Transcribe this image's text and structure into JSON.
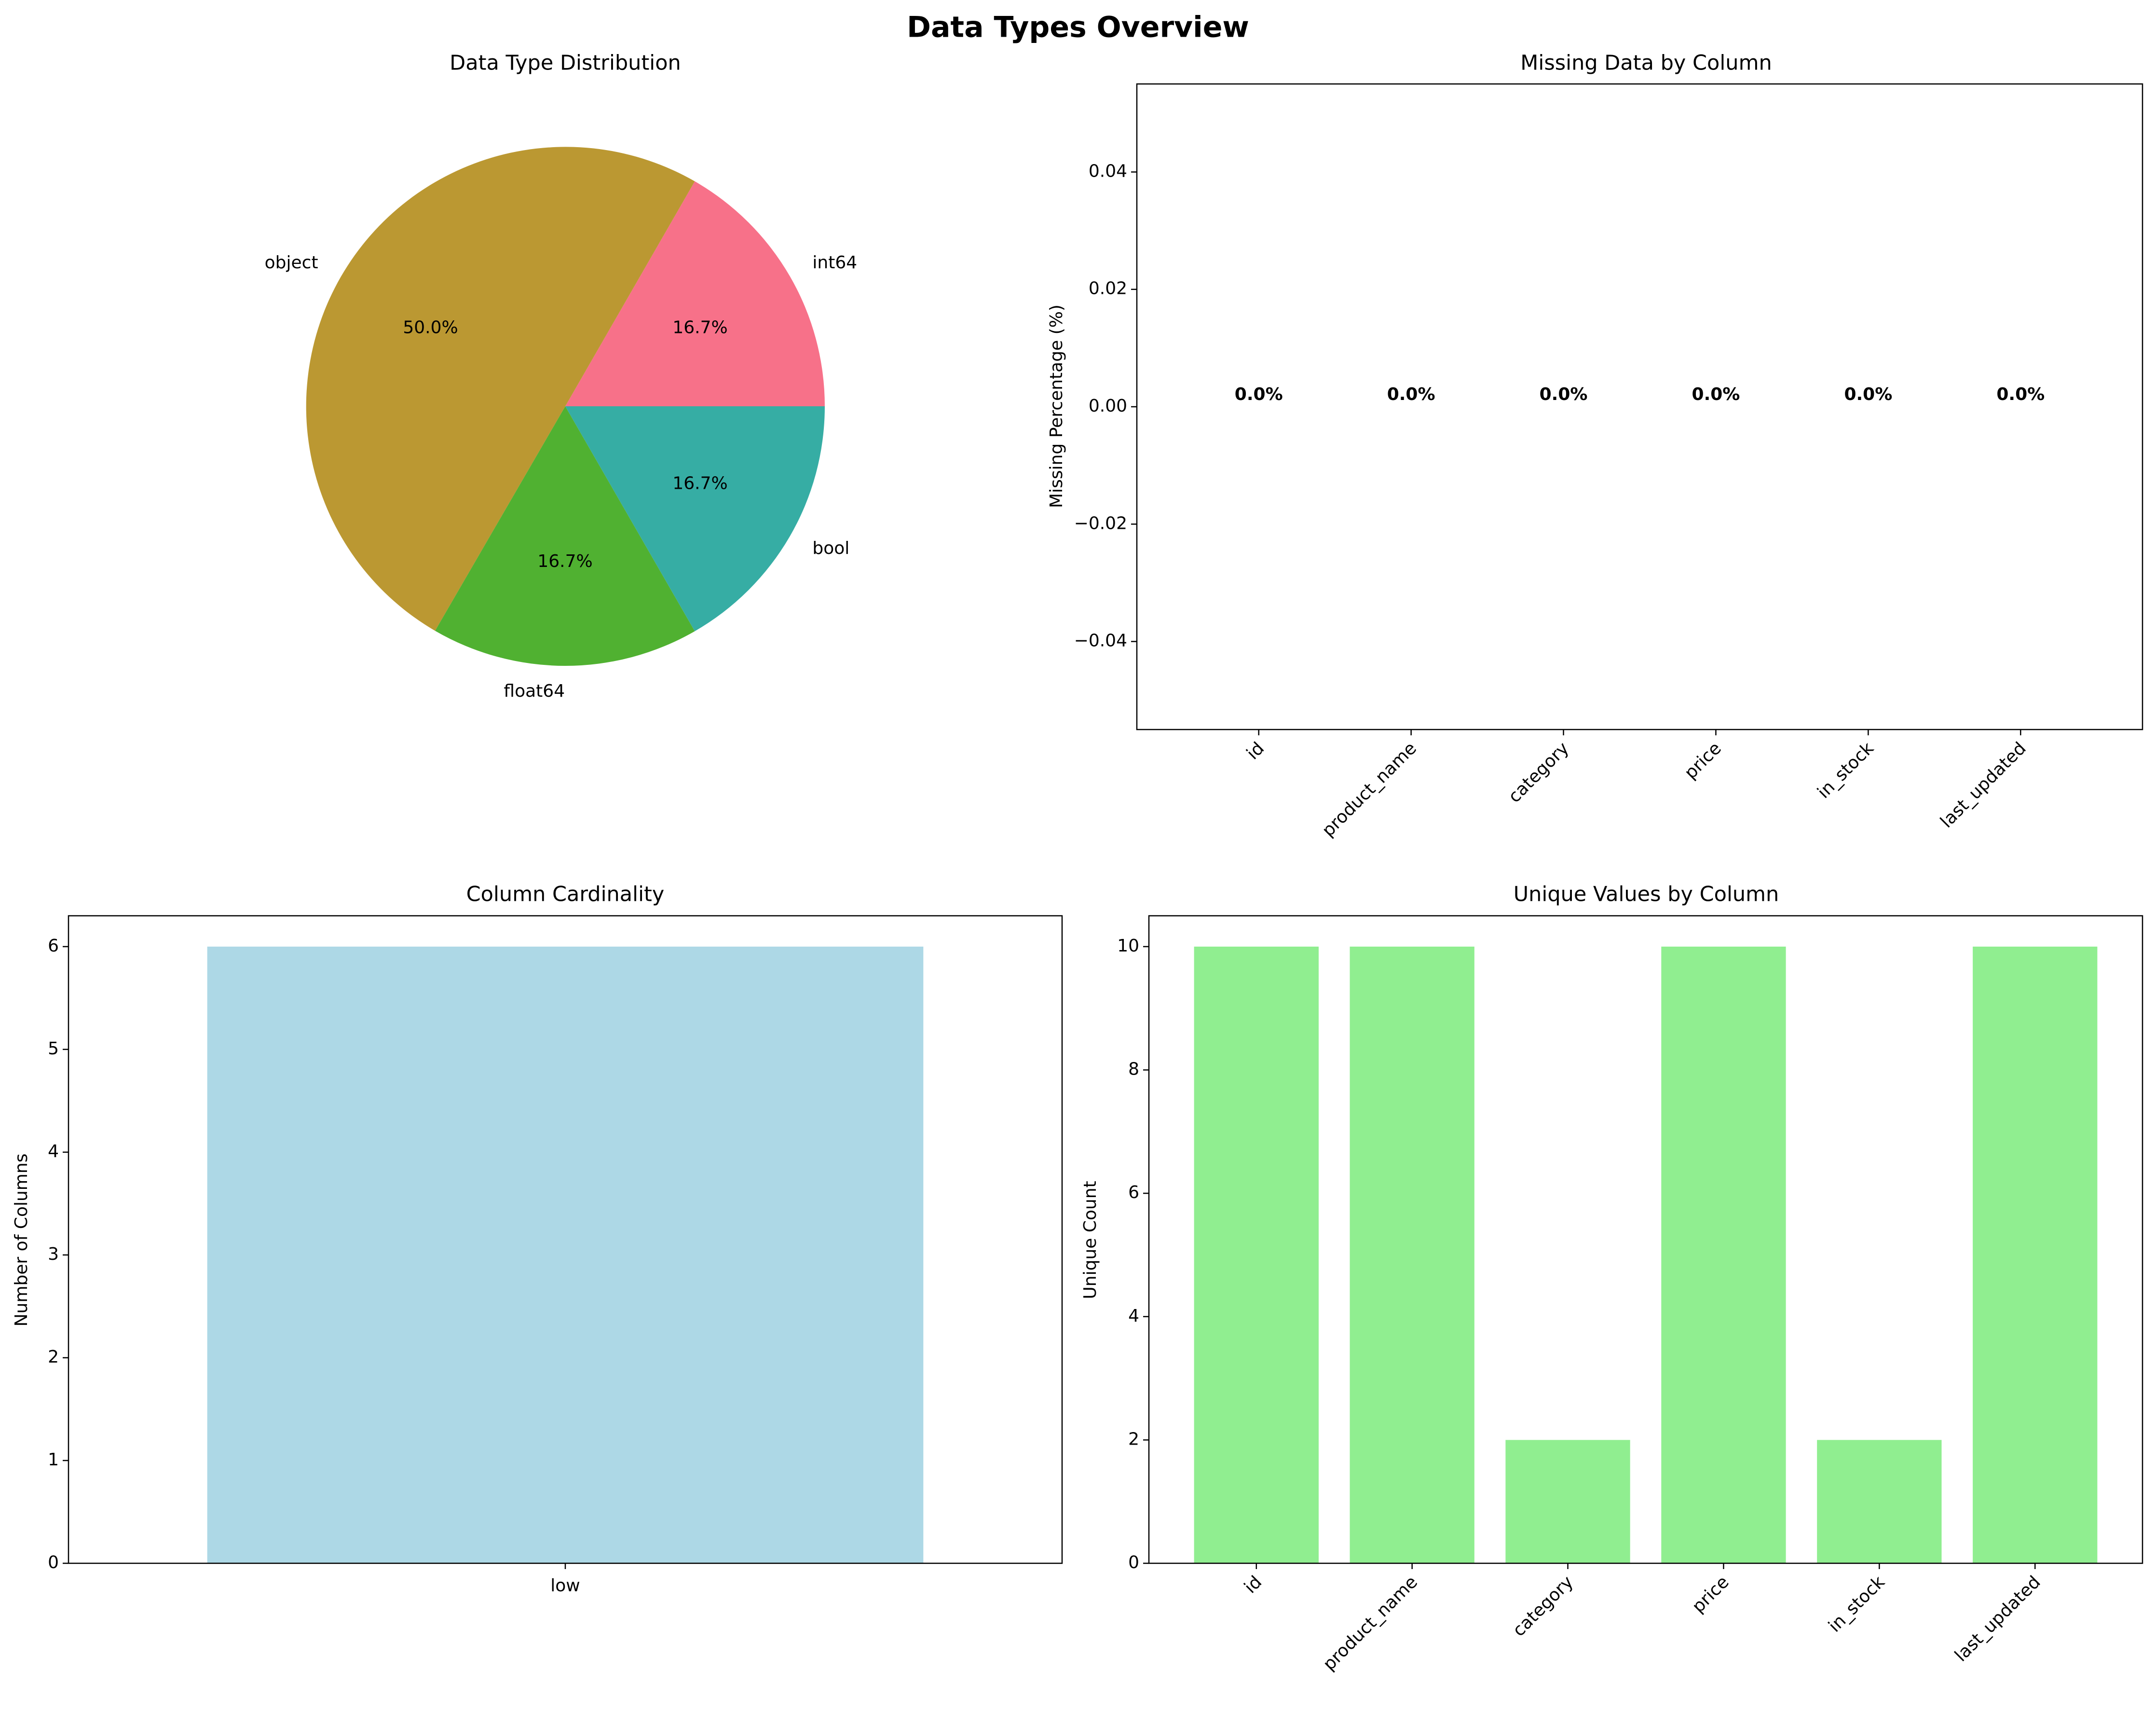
{
  "figure": {
    "title": "Data Types Overview"
  },
  "chart_data": [
    {
      "type": "pie",
      "title": "Data Type Distribution",
      "labels": [
        "int64",
        "object",
        "float64",
        "bool"
      ],
      "values": [
        16.7,
        50.0,
        16.7,
        16.7
      ],
      "pct_labels": [
        "16.7%",
        "50.0%",
        "16.7%",
        "16.7%"
      ],
      "colors": [
        "#f77189",
        "#bb9832",
        "#50b131",
        "#36ada4"
      ]
    },
    {
      "type": "bar",
      "title": "Missing Data by Column",
      "ylabel": "Missing Percentage (%)",
      "categories": [
        "id",
        "product_name",
        "category",
        "price",
        "in_stock",
        "last_updated"
      ],
      "values": [
        0.0,
        0.0,
        0.0,
        0.0,
        0.0,
        0.0
      ],
      "value_labels": [
        "0.0%",
        "0.0%",
        "0.0%",
        "0.0%",
        "0.0%",
        "0.0%"
      ],
      "ylim": [
        -0.055,
        0.055
      ],
      "yticks": [
        0.04,
        0.02,
        0.0,
        -0.02,
        -0.04
      ],
      "ytick_labels": [
        "0.04",
        "0.02",
        "0.00",
        "−0.02",
        "−0.04"
      ]
    },
    {
      "type": "bar",
      "title": "Column Cardinality",
      "ylabel": "Number of Columns",
      "categories": [
        "low"
      ],
      "values": [
        6
      ],
      "ylim": [
        0,
        6.3
      ],
      "yticks": [
        0,
        1,
        2,
        3,
        4,
        5,
        6
      ],
      "ytick_labels": [
        "0",
        "1",
        "2",
        "3",
        "4",
        "5",
        "6"
      ],
      "color": "#add8e6"
    },
    {
      "type": "bar",
      "title": "Unique Values by Column",
      "ylabel": "Unique Count",
      "categories": [
        "id",
        "product_name",
        "category",
        "price",
        "in_stock",
        "last_updated"
      ],
      "values": [
        10,
        10,
        2,
        10,
        2,
        10
      ],
      "ylim": [
        0,
        10.5
      ],
      "yticks": [
        0,
        2,
        4,
        6,
        8,
        10
      ],
      "ytick_labels": [
        "0",
        "2",
        "4",
        "6",
        "8",
        "10"
      ],
      "color": "#90ee90"
    }
  ]
}
